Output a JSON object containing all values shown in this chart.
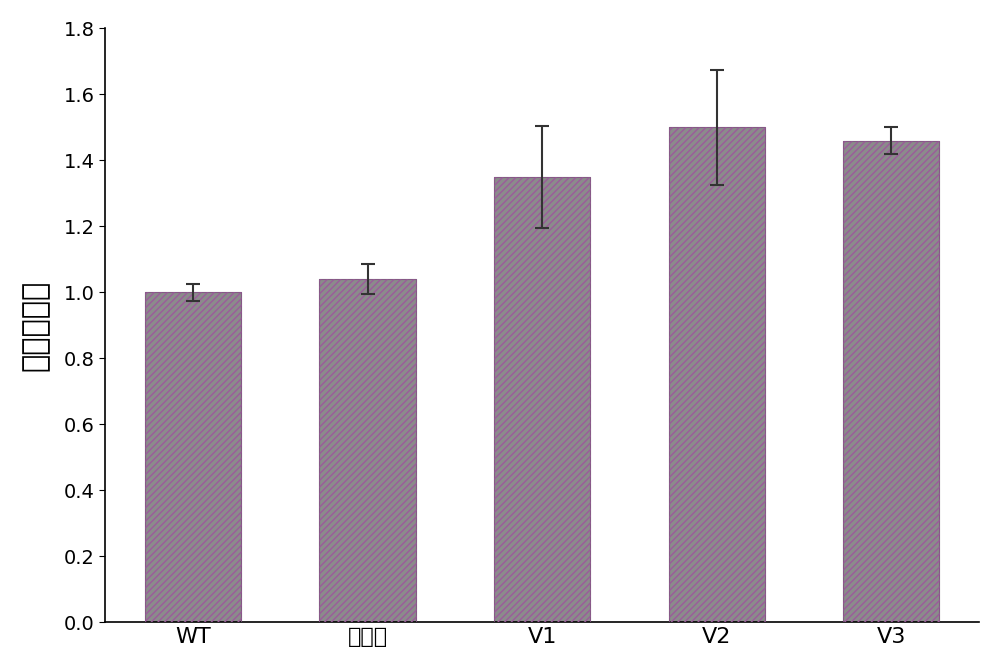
{
  "categories": [
    "WT",
    "空载体",
    "V1",
    "V2",
    "V3"
  ],
  "values": [
    1.0,
    1.04,
    1.35,
    1.5,
    1.46
  ],
  "errors": [
    0.025,
    0.045,
    0.155,
    0.175,
    0.04
  ],
  "bar_color": "#8B8B8B",
  "hatch_color": "#9B6B9B",
  "hatch": "////",
  "ylabel": "相对表达量",
  "ylim": [
    0,
    1.8
  ],
  "yticks": [
    0,
    0.2,
    0.4,
    0.6,
    0.8,
    1.0,
    1.2,
    1.4,
    1.6,
    1.8
  ],
  "bar_width": 0.55,
  "ylabel_fontsize": 22,
  "tick_fontsize": 14,
  "xlabel_fontsize": 16,
  "error_capsize": 5,
  "figure_width": 10.0,
  "figure_height": 6.68,
  "background_color": "#ffffff",
  "border_color": "#000000"
}
